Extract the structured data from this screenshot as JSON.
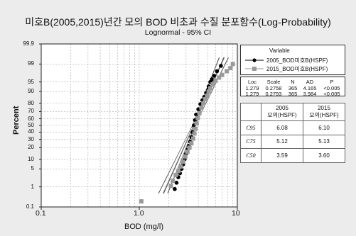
{
  "title": "미호B(2005,2015)년간 모의 BOD 비초과 수질 분포함수(Log-Probability)",
  "subtitle": "Lognormal - 95% CI",
  "legend": {
    "header": "Variable",
    "items": [
      {
        "label": "2005_BOD미호B(HSPF)",
        "marker": "circle",
        "color": "#000000"
      },
      {
        "label": "2015_BOD미호B(HSPF)",
        "marker": "square",
        "color": "#9a9a9a"
      }
    ]
  },
  "stats_table": {
    "headers": [
      "Loc",
      "Scale",
      "N",
      "AD",
      "P"
    ],
    "rows": [
      [
        "1.279",
        "0.2758",
        "365",
        "4.165",
        "<0.005"
      ],
      [
        "1.279",
        "0.2793",
        "365",
        "3.984",
        "<0.005"
      ]
    ]
  },
  "c_table": {
    "col_headers": [
      {
        "year": "2005",
        "sub": "모의(HSPF)"
      },
      {
        "year": "2015",
        "sub": "모의(HSPF)"
      }
    ],
    "rows": [
      {
        "label": "C95",
        "values": [
          "6.08",
          "6.10"
        ]
      },
      {
        "label": "C75",
        "values": [
          "5.12",
          "5.13"
        ]
      },
      {
        "label": "C50",
        "values": [
          "3.59",
          "3.60"
        ]
      }
    ]
  },
  "chart_data": {
    "type": "scatter",
    "xlabel": "BOD (mg/l)",
    "ylabel": "Percent",
    "x_scale": "log",
    "y_scale": "probability",
    "xlim": [
      0.1,
      10
    ],
    "ylim": [
      0.1,
      99.9
    ],
    "x_ticks": [
      "0.1",
      "1.0",
      "10"
    ],
    "y_ticks": [
      "0.1",
      "1",
      "5",
      "10",
      "20",
      "30",
      "40",
      "50",
      "60",
      "70",
      "80",
      "90",
      "95",
      "99",
      "99.9"
    ],
    "grid": true,
    "series": [
      {
        "name": "2005_BOD미호B(HSPF)",
        "marker": "circle",
        "color": "#000000",
        "points": [
          [
            2.3,
            0.8
          ],
          [
            2.4,
            1.5
          ],
          [
            2.5,
            2.5
          ],
          [
            2.6,
            3.5
          ],
          [
            2.7,
            5
          ],
          [
            2.8,
            7
          ],
          [
            2.9,
            10
          ],
          [
            3.0,
            14
          ],
          [
            3.1,
            18
          ],
          [
            3.2,
            22
          ],
          [
            3.3,
            27
          ],
          [
            3.4,
            33
          ],
          [
            3.5,
            40
          ],
          [
            3.6,
            50
          ],
          [
            3.7,
            58
          ],
          [
            3.8,
            66
          ],
          [
            4.0,
            73
          ],
          [
            4.2,
            79
          ],
          [
            4.4,
            83
          ],
          [
            4.6,
            86
          ],
          [
            4.8,
            89
          ],
          [
            5.0,
            91
          ],
          [
            5.1,
            93
          ],
          [
            5.3,
            95
          ],
          [
            5.5,
            96
          ],
          [
            5.8,
            97
          ],
          [
            6.2,
            98
          ],
          [
            6.8,
            98.8
          ]
        ],
        "fit": {
          "loc": 1.279,
          "scale": 0.2758
        }
      },
      {
        "name": "2015_BOD미호B(HSPF)",
        "marker": "square",
        "color": "#9a9a9a",
        "points": [
          [
            1.05,
            0.2
          ],
          [
            2.1,
            1.1
          ],
          [
            2.2,
            1.8
          ],
          [
            2.35,
            3
          ],
          [
            2.5,
            4.2
          ],
          [
            2.65,
            6
          ],
          [
            2.8,
            8.5
          ],
          [
            2.95,
            12
          ],
          [
            3.1,
            16
          ],
          [
            3.25,
            20
          ],
          [
            3.4,
            25
          ],
          [
            3.55,
            31
          ],
          [
            3.65,
            38
          ],
          [
            3.75,
            45
          ],
          [
            3.85,
            53
          ],
          [
            3.95,
            61
          ],
          [
            4.1,
            68
          ],
          [
            4.3,
            75
          ],
          [
            4.5,
            80
          ],
          [
            4.7,
            84
          ],
          [
            4.9,
            87
          ],
          [
            5.1,
            90
          ],
          [
            5.3,
            92
          ],
          [
            5.6,
            94
          ],
          [
            6.0,
            95.5
          ],
          [
            6.5,
            96.5
          ],
          [
            7.0,
            97.2
          ],
          [
            7.8,
            98
          ],
          [
            8.5,
            98.5
          ],
          [
            9.0,
            99
          ]
        ],
        "fit": {
          "loc": 1.279,
          "scale": 0.2793
        }
      }
    ]
  }
}
